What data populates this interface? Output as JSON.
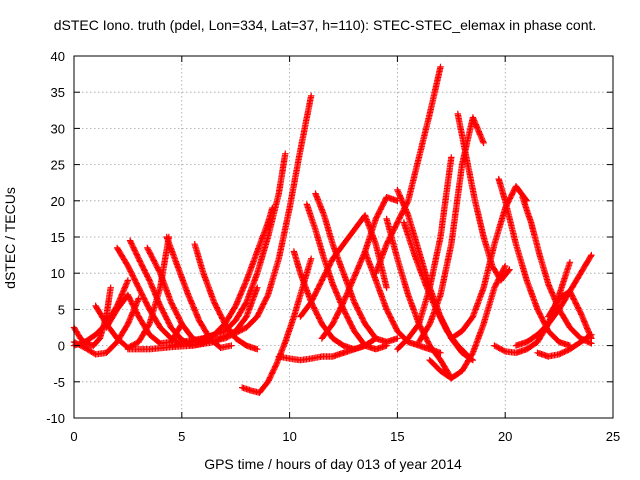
{
  "chart_data": {
    "type": "scatter",
    "title": "dSTEC Iono. truth (pdel, Lon=334, Lat=37, h=110): STEC-STEC_elemax in phase cont.",
    "xlabel": "GPS time / hours of day 013 of year 2014",
    "ylabel": "dSTEC  / TECUs",
    "xlim": [
      0,
      25
    ],
    "ylim": [
      -10,
      40
    ],
    "xticks": [
      0,
      5,
      10,
      15,
      20,
      25
    ],
    "yticks": [
      -10,
      -5,
      0,
      5,
      10,
      15,
      20,
      25,
      30,
      35,
      40
    ],
    "xtick_labels": [
      "0",
      "5",
      "10",
      "15",
      "20",
      "25"
    ],
    "ytick_labels": [
      "-10",
      "-5",
      "0",
      "5",
      "10",
      "15",
      "20",
      "25",
      "30",
      "35",
      "40"
    ],
    "grid": true,
    "legend": "none",
    "marker": "plus",
    "color": "#ff0000",
    "series": [
      {
        "x": [
          0.0,
          0.3,
          0.6,
          0.9,
          1.2,
          1.5,
          1.7
        ],
        "y": [
          2.5,
          1.0,
          0.2,
          0.0,
          1.0,
          4.0,
          8.0
        ]
      },
      {
        "x": [
          0.0,
          0.5,
          1.0,
          1.5,
          2.0,
          2.5
        ],
        "y": [
          0.0,
          0.5,
          1.5,
          3.0,
          5.5,
          9.0
        ]
      },
      {
        "x": [
          0.0,
          0.5,
          1.0,
          1.5,
          2.0,
          2.5,
          3.0
        ],
        "y": [
          0.5,
          -0.3,
          -1.2,
          -1.0,
          0.5,
          3.0,
          6.5
        ]
      },
      {
        "x": [
          1.0,
          1.5,
          2.0,
          2.5,
          3.0,
          3.5,
          4.0,
          4.4
        ],
        "y": [
          5.5,
          3.0,
          1.0,
          -0.3,
          0.5,
          3.0,
          8.0,
          15.0
        ]
      },
      {
        "x": [
          1.5,
          2.0,
          2.5,
          3.0,
          3.5,
          4.0,
          4.5,
          5.0
        ],
        "y": [
          2.5,
          5.0,
          7.0,
          4.0,
          1.5,
          0.3,
          0.5,
          3.0
        ]
      },
      {
        "x": [
          2.0,
          2.5,
          3.0,
          3.5,
          4.0,
          4.5,
          5.0,
          5.5
        ],
        "y": [
          13.5,
          11.0,
          8.0,
          5.0,
          2.5,
          1.0,
          0.3,
          0.5
        ]
      },
      {
        "x": [
          2.6,
          3.0,
          3.5,
          4.0,
          4.5,
          5.0,
          5.5,
          6.0
        ],
        "y": [
          14.5,
          12.0,
          9.0,
          5.5,
          2.5,
          0.8,
          0.0,
          0.3
        ]
      },
      {
        "x": [
          3.4,
          4.0,
          4.5,
          5.0,
          5.5,
          6.0,
          6.5
        ],
        "y": [
          13.5,
          10.0,
          6.0,
          3.0,
          1.0,
          0.3,
          1.5
        ]
      },
      {
        "x": [
          4.3,
          4.8,
          5.3,
          5.8,
          6.3,
          6.8,
          7.3
        ],
        "y": [
          15.0,
          11.0,
          7.0,
          3.5,
          1.0,
          -0.3,
          0.0
        ]
      },
      {
        "x": [
          5.6,
          6.0,
          6.5,
          7.0,
          7.5,
          8.0,
          8.5
        ],
        "y": [
          14.0,
          10.0,
          6.0,
          3.0,
          1.0,
          0.0,
          -0.5
        ]
      },
      {
        "x": [
          2.5,
          3.5,
          4.5,
          5.5,
          6.5,
          7.5,
          8.0,
          8.5
        ],
        "y": [
          -0.5,
          -0.5,
          -0.2,
          0.0,
          0.5,
          2.0,
          4.0,
          8.0
        ]
      },
      {
        "x": [
          4.5,
          5.5,
          6.5,
          7.0,
          7.5,
          8.0,
          8.5,
          9.0,
          9.2
        ],
        "y": [
          0.0,
          0.5,
          1.5,
          3.0,
          5.5,
          9.0,
          13.0,
          17.0,
          19.0
        ]
      },
      {
        "x": [
          5.0,
          6.0,
          7.0,
          7.5,
          8.0,
          8.5,
          9.0,
          9.5,
          9.8
        ],
        "y": [
          0.5,
          1.0,
          2.0,
          3.5,
          6.0,
          10.0,
          15.0,
          21.0,
          26.5
        ]
      },
      {
        "x": [
          6.0,
          7.0,
          8.0,
          8.5,
          9.0,
          9.5,
          10.0,
          10.5,
          11.0
        ],
        "y": [
          0.5,
          1.0,
          2.5,
          4.0,
          7.0,
          12.0,
          19.0,
          27.0,
          34.5
        ]
      },
      {
        "x": [
          7.8,
          8.2,
          8.6,
          9.0,
          9.4,
          9.8,
          10.2,
          10.6,
          11.0
        ],
        "y": [
          -5.8,
          -6.2,
          -6.5,
          -5.0,
          -2.5,
          0.5,
          4.0,
          8.0,
          12.0
        ]
      },
      {
        "x": [
          9.5,
          10.0,
          10.5,
          11.0,
          11.5,
          12.0,
          12.5,
          13.0,
          13.5
        ],
        "y": [
          -1.5,
          -1.8,
          -2.0,
          -1.8,
          -1.5,
          -1.5,
          -1.0,
          -0.5,
          0.0
        ]
      },
      {
        "x": [
          10.2,
          10.5,
          11.0,
          11.5,
          12.0,
          12.5,
          13.0,
          13.5,
          14.0
        ],
        "y": [
          13.0,
          10.0,
          6.0,
          3.0,
          1.0,
          0.0,
          -0.5,
          0.0,
          1.0
        ]
      },
      {
        "x": [
          10.5,
          11.0,
          11.5,
          12.0,
          12.5,
          13.0,
          13.5,
          14.0,
          14.5
        ],
        "y": [
          4.0,
          6.0,
          9.0,
          12.0,
          14.0,
          16.0,
          18.0,
          14.0,
          8.0
        ]
      },
      {
        "x": [
          10.8,
          11.2,
          11.6,
          12.0,
          12.5,
          13.0,
          13.5,
          14.0,
          14.5
        ],
        "y": [
          19.5,
          16.0,
          12.0,
          8.5,
          5.0,
          2.0,
          0.0,
          -0.5,
          0.0
        ]
      },
      {
        "x": [
          11.2,
          11.6,
          12.0,
          12.5,
          13.0,
          13.5,
          14.0,
          14.5,
          15.0
        ],
        "y": [
          21.0,
          18.0,
          14.0,
          10.0,
          6.0,
          3.0,
          1.0,
          0.5,
          1.0
        ]
      },
      {
        "x": [
          11.5,
          12.0,
          12.5,
          13.0,
          13.5,
          14.0,
          14.5,
          15.0
        ],
        "y": [
          1.0,
          3.0,
          6.0,
          9.5,
          13.0,
          17.5,
          20.5,
          20.0
        ]
      },
      {
        "x": [
          13.5,
          14.0,
          14.5,
          15.0,
          15.5,
          16.0,
          16.5,
          17.0
        ],
        "y": [
          13.0,
          9.0,
          5.0,
          2.0,
          0.5,
          0.0,
          -0.5,
          -1.0
        ]
      },
      {
        "x": [
          14.0,
          14.5,
          15.0,
          15.5,
          16.0,
          16.5,
          17.0
        ],
        "y": [
          10.0,
          14.0,
          17.0,
          20.0,
          26.0,
          32.0,
          38.5
        ]
      },
      {
        "x": [
          14.5,
          15.0,
          15.5,
          16.0,
          16.5,
          17.0,
          17.5
        ],
        "y": [
          17.5,
          12.0,
          7.0,
          3.0,
          0.0,
          -2.0,
          -4.5
        ]
      },
      {
        "x": [
          15.0,
          15.5,
          16.0,
          16.5,
          17.0,
          17.5,
          18.0,
          18.5
        ],
        "y": [
          21.5,
          18.0,
          13.0,
          8.0,
          4.0,
          1.0,
          -1.0,
          -2.0
        ]
      },
      {
        "x": [
          15.3,
          15.8,
          16.3,
          16.8,
          17.3,
          17.8,
          18.3
        ],
        "y": [
          17.0,
          12.5,
          8.5,
          5.0,
          2.0,
          0.0,
          -1.5
        ]
      },
      {
        "x": [
          15.0,
          15.5,
          16.0,
          16.5,
          17.0,
          17.5
        ],
        "y": [
          -0.5,
          1.0,
          3.0,
          8.0,
          15.0,
          26.0
        ]
      },
      {
        "x": [
          16.0,
          16.5,
          17.0,
          17.5,
          18.0,
          18.5,
          19.0
        ],
        "y": [
          0.5,
          3.0,
          7.0,
          14.0,
          25.0,
          31.5,
          28.0
        ]
      },
      {
        "x": [
          16.5,
          17.0,
          17.5,
          18.0,
          18.5,
          19.0,
          19.5,
          20.0
        ],
        "y": [
          -2.0,
          -3.5,
          -4.5,
          -3.5,
          -1.0,
          3.0,
          8.0,
          11.0
        ]
      },
      {
        "x": [
          17.8,
          18.2,
          18.6,
          19.0,
          19.4,
          19.8,
          20.2
        ],
        "y": [
          32.0,
          26.0,
          20.0,
          15.0,
          11.0,
          9.0,
          10.5
        ]
      },
      {
        "x": [
          17.5,
          18.0,
          18.5,
          19.0,
          19.5,
          20.0,
          20.5,
          21.0
        ],
        "y": [
          1.0,
          2.0,
          4.0,
          8.0,
          14.0,
          19.0,
          22.0,
          20.0
        ]
      },
      {
        "x": [
          19.7,
          20.0,
          20.5,
          21.0,
          21.5,
          22.0,
          22.5,
          23.0
        ],
        "y": [
          23.0,
          20.0,
          14.0,
          9.0,
          5.0,
          2.0,
          0.5,
          0.0
        ]
      },
      {
        "x": [
          20.8,
          21.2,
          21.6,
          22.0,
          22.5,
          23.0,
          23.5,
          24.0
        ],
        "y": [
          20.5,
          17.0,
          12.5,
          8.5,
          5.0,
          2.5,
          1.0,
          0.3
        ]
      },
      {
        "x": [
          19.5,
          20.0,
          20.5,
          21.0,
          21.5,
          22.0,
          22.5,
          23.0
        ],
        "y": [
          0.0,
          -0.8,
          -1.0,
          -0.5,
          0.5,
          3.0,
          7.0,
          11.5
        ]
      },
      {
        "x": [
          20.5,
          21.0,
          21.5,
          22.0,
          22.5,
          23.0,
          23.5,
          24.0
        ],
        "y": [
          0.0,
          0.5,
          1.5,
          3.0,
          5.0,
          7.5,
          10.0,
          12.5
        ]
      },
      {
        "x": [
          21.5,
          22.0,
          22.5,
          23.0,
          23.5,
          24.0
        ],
        "y": [
          -1.0,
          -1.5,
          -1.2,
          -0.5,
          0.5,
          1.5
        ]
      },
      {
        "x": [
          22.0,
          22.5,
          23.0,
          23.5,
          24.0
        ],
        "y": [
          4.0,
          6.5,
          7.5,
          4.5,
          1.0
        ]
      }
    ]
  }
}
